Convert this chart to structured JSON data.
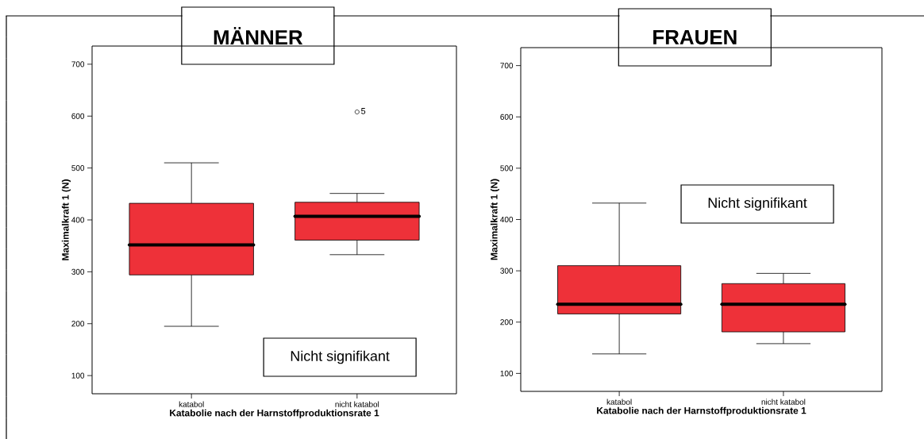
{
  "chart_data": [
    {
      "type": "box",
      "title": "MÄNNER",
      "xlabel": "Katabolie nach der Harnstoffproduktionsrate 1",
      "ylabel": "Maximalkraft 1 (N)",
      "categories": [
        "katabol",
        "nicht katabol"
      ],
      "color": "#ee3139",
      "ylim": [
        65,
        735
      ],
      "yticks": [
        100,
        200,
        300,
        400,
        500,
        600,
        700
      ],
      "boxes": [
        {
          "low": 195,
          "q1": 294,
          "median": 352,
          "q3": 432,
          "high": 510
        },
        {
          "low": 333,
          "q1": 361,
          "median": 407,
          "q3": 434,
          "high": 451,
          "outliers": [
            608
          ]
        }
      ],
      "annotations": [
        "5",
        "Nicht signifikant"
      ]
    },
    {
      "type": "box",
      "title": "FRAUEN",
      "xlabel": "Katabolie nach der Harnstoffproduktionsrate 1",
      "ylabel": "Maximalkraft 1 (N)",
      "categories": [
        "katabol",
        "nicht katabol"
      ],
      "color": "#ee3139",
      "ylim": [
        65,
        735
      ],
      "yticks": [
        100,
        200,
        300,
        400,
        500,
        600,
        700
      ],
      "boxes": [
        {
          "low": 138,
          "q1": 216,
          "median": 235,
          "q3": 310,
          "high": 432
        },
        {
          "low": 158,
          "q1": 181,
          "median": 235,
          "q3": 275,
          "high": 295
        }
      ],
      "annotations": [
        "Nicht signifikant"
      ]
    }
  ]
}
